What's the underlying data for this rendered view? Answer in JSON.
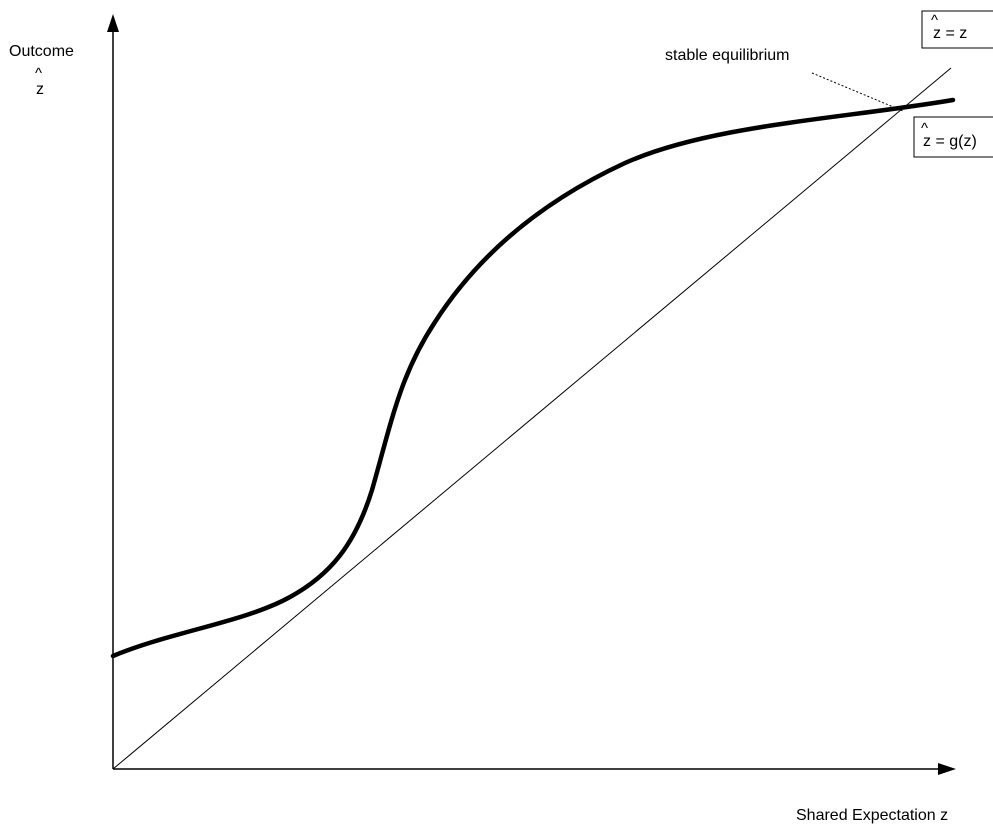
{
  "y_axis": {
    "label": "Outcome",
    "symbol_hat": "^",
    "symbol": "z"
  },
  "x_axis": {
    "label": "Shared Expectation z"
  },
  "identity_line_label": {
    "hat": "^",
    "lhs": "z",
    "rhs": " = z"
  },
  "curve_label": {
    "hat": "^",
    "lhs": "z",
    "rhs": " = g(z)"
  },
  "annotation": {
    "text": "stable equilibrium"
  },
  "colors": {
    "ink": "#000000",
    "background": "#ffffff"
  }
}
